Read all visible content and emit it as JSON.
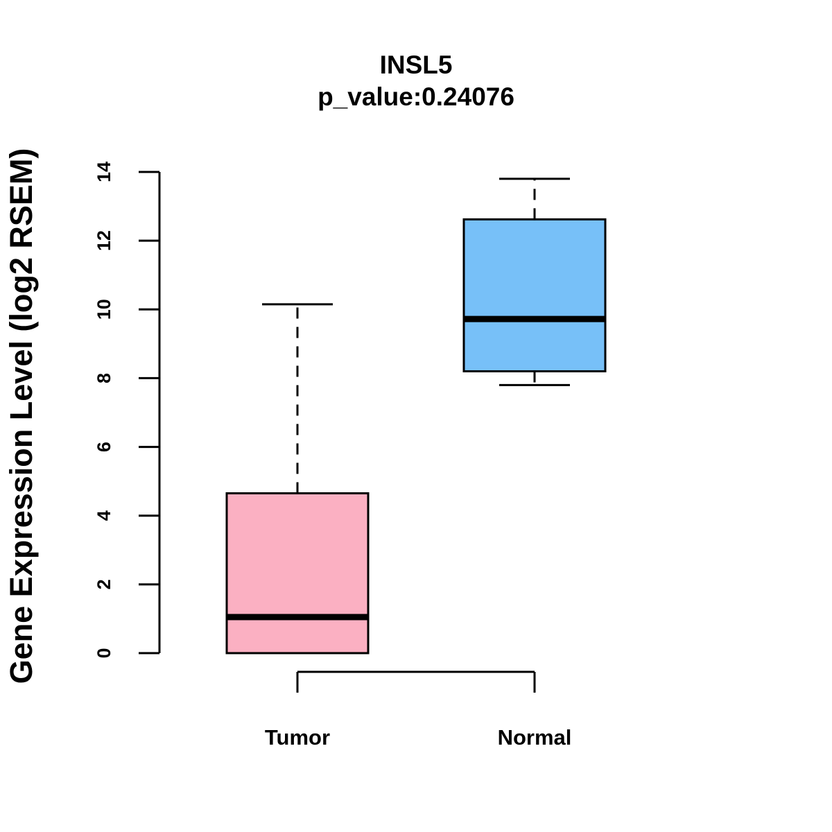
{
  "chart_data": {
    "type": "boxplot",
    "title": "INSL5",
    "subtitle": "p_value:0.24076",
    "xlabel": "",
    "ylabel": "Gene Expression Level (log2 RSEM)",
    "ylim": [
      0,
      14
    ],
    "yticks": [
      "0",
      "2",
      "4",
      "6",
      "8",
      "10",
      "12",
      "14"
    ],
    "grid": false,
    "categories": [
      "Tumor",
      "Normal"
    ],
    "boxes": [
      {
        "name": "Tumor",
        "min": 0,
        "q1": 0,
        "median": 1.05,
        "q3": 4.65,
        "max": 10.15,
        "color": "#FBB0C2"
      },
      {
        "name": "Normal",
        "min": 7.8,
        "q1": 8.2,
        "median": 9.72,
        "q3": 12.62,
        "max": 13.8,
        "color": "#77C0F8"
      }
    ]
  }
}
